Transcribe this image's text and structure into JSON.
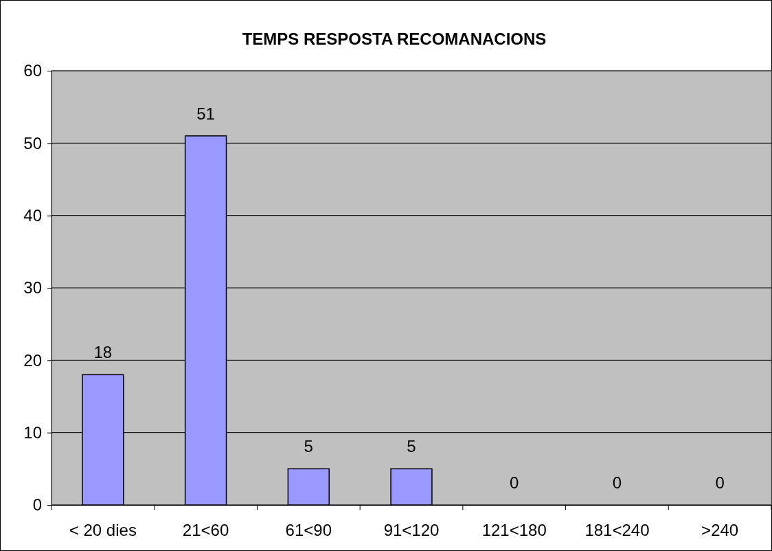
{
  "chart_data": {
    "type": "bar",
    "title": "TEMPS RESPOSTA RECOMANACIONS",
    "categories": [
      "< 20 dies",
      "21<60",
      "61<90",
      "91<120",
      "121<180",
      "181<240",
      ">240"
    ],
    "values": [
      18,
      51,
      5,
      5,
      0,
      0,
      0
    ],
    "color": "#9999ff",
    "ylim": [
      0,
      60
    ],
    "yticks": [
      0,
      10,
      20,
      30,
      40,
      50,
      60
    ],
    "grid": "y",
    "data_labels": true
  }
}
